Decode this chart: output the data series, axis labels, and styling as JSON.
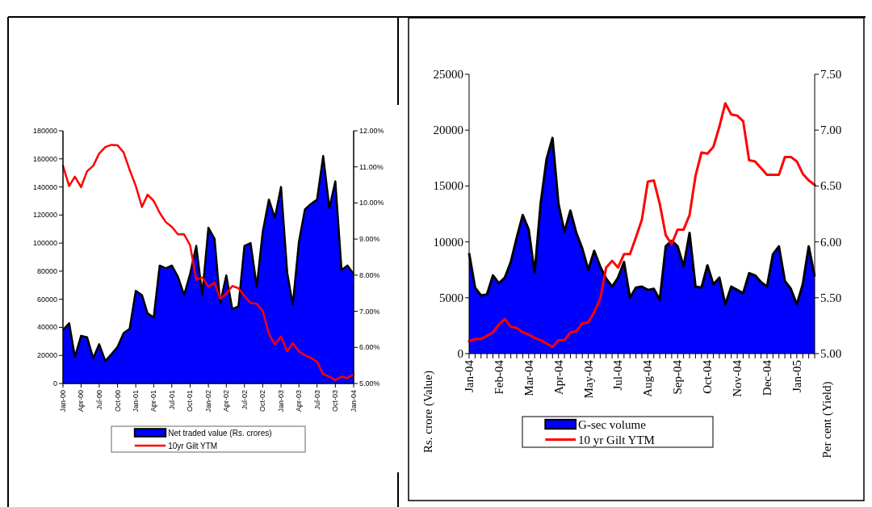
{
  "chart_data": [
    {
      "type": "area",
      "x": [
        "2000-01",
        "2000-02",
        "2000-03",
        "2000-04",
        "2000-05",
        "2000-06",
        "2000-07",
        "2000-08",
        "2000-09",
        "2000-10",
        "2000-11",
        "2000-12",
        "2001-01",
        "2001-02",
        "2001-03",
        "2001-04",
        "2001-05",
        "2001-06",
        "2001-07",
        "2001-08",
        "2001-09",
        "2001-10",
        "2001-11",
        "2001-12",
        "2002-01",
        "2002-02",
        "2002-03",
        "2002-04",
        "2002-05",
        "2002-06",
        "2002-07",
        "2002-08",
        "2002-09",
        "2002-10",
        "2002-11",
        "2002-12",
        "2003-01",
        "2003-02",
        "2003-03",
        "2003-04",
        "2003-05",
        "2003-06",
        "2003-07",
        "2003-08",
        "2003-09",
        "2003-10",
        "2003-11",
        "2003-12",
        "2004-01"
      ],
      "series": [
        {
          "name": "Net traded value (Rs. crores)",
          "type": "area",
          "color": "#0000ff",
          "values": [
            38000,
            43000,
            19000,
            34000,
            33000,
            18000,
            28000,
            16000,
            21000,
            26000,
            36000,
            39000,
            66000,
            63000,
            50000,
            47000,
            84000,
            82000,
            84000,
            76000,
            63000,
            78000,
            98000,
            63000,
            111000,
            103000,
            57000,
            77000,
            53000,
            55000,
            98000,
            100000,
            69000,
            108000,
            131000,
            118000,
            140000,
            79000,
            56000,
            101000,
            124000,
            128000,
            131000,
            162000,
            125000,
            144000,
            81000,
            84000,
            78000
          ]
        },
        {
          "name": "10yr Gilt YTM",
          "type": "line",
          "axis": "y2",
          "color": "#ff0000",
          "values": [
            11.03,
            10.47,
            10.73,
            10.44,
            10.88,
            11.03,
            11.37,
            11.55,
            11.61,
            11.6,
            11.4,
            10.92,
            10.47,
            9.89,
            10.23,
            10.06,
            9.73,
            9.47,
            9.34,
            9.13,
            9.13,
            8.83,
            7.87,
            7.94,
            7.68,
            7.79,
            7.35,
            7.49,
            7.7,
            7.64,
            7.42,
            7.23,
            7.21,
            7.01,
            6.38,
            6.08,
            6.3,
            5.89,
            6.12,
            5.89,
            5.78,
            5.71,
            5.6,
            5.26,
            5.19,
            5.1,
            5.19,
            5.15,
            5.26
          ]
        }
      ],
      "xlim": [
        "2000-01",
        "2004-01"
      ],
      "xticks": [
        {
          "value": "2000-01",
          "label": "Jan-00"
        },
        {
          "value": "2000-04",
          "label": "Apr-00"
        },
        {
          "value": "2000-07",
          "label": "Jul-00"
        },
        {
          "value": "2000-10",
          "label": "Oct-00"
        },
        {
          "value": "2001-01",
          "label": "Jan-01"
        },
        {
          "value": "2001-04",
          "label": "Apr-01"
        },
        {
          "value": "2001-07",
          "label": "Jul-01"
        },
        {
          "value": "2001-10",
          "label": "Oct-01"
        },
        {
          "value": "2002-01",
          "label": "Jan-02"
        },
        {
          "value": "2002-04",
          "label": "Apr-02"
        },
        {
          "value": "2002-07",
          "label": "Jul-02"
        },
        {
          "value": "2002-10",
          "label": "Oct-02"
        },
        {
          "value": "2003-01",
          "label": "Jan-03"
        },
        {
          "value": "2003-04",
          "label": "Apr-03"
        },
        {
          "value": "2003-07",
          "label": "Jul-03"
        },
        {
          "value": "2003-10",
          "label": "Oct-03"
        },
        {
          "value": "2004-01",
          "label": "Jan-04"
        }
      ],
      "ylim": [
        0,
        180000
      ],
      "yticks": [
        0,
        20000,
        40000,
        60000,
        80000,
        100000,
        120000,
        140000,
        160000,
        180000
      ],
      "y2lim": [
        5,
        12
      ],
      "y2ticks": [
        {
          "value": 5,
          "label": "5.00%"
        },
        {
          "value": 6,
          "label": "6.00%"
        },
        {
          "value": 7,
          "label": "7.00%"
        },
        {
          "value": 8,
          "label": "8.00%"
        },
        {
          "value": 9,
          "label": "9.00%"
        },
        {
          "value": 10,
          "label": "10.00%"
        },
        {
          "value": 11,
          "label": "11.00%"
        },
        {
          "value": 12,
          "label": "12.00%"
        }
      ],
      "legend": "bottom",
      "grid": false
    },
    {
      "type": "area",
      "ylabel": "Rs. crore (Value)",
      "y2label": "Per cent (Yield)",
      "categories": [
        "Jan-04",
        null,
        null,
        null,
        null,
        "Feb-04",
        null,
        null,
        null,
        null,
        "Mar-04",
        null,
        null,
        null,
        null,
        "Apr-04",
        null,
        null,
        null,
        null,
        "May-04",
        null,
        null,
        null,
        null,
        "Jul-04",
        null,
        null,
        null,
        null,
        "Aug-04",
        null,
        null,
        null,
        null,
        "Sep-04",
        null,
        null,
        null,
        null,
        "Oct-04",
        null,
        null,
        null,
        null,
        "Nov-04",
        null,
        null,
        null,
        null,
        "Dec-04",
        null,
        null,
        null,
        null,
        "Jan-05",
        null,
        null,
        null
      ],
      "series": [
        {
          "name": "G-sec volume",
          "type": "area",
          "color": "#0000ff",
          "values": [
            9000,
            5900,
            5200,
            5300,
            7000,
            6300,
            6800,
            8200,
            10400,
            12400,
            11100,
            7200,
            13400,
            17400,
            19300,
            13400,
            10900,
            12800,
            10800,
            9400,
            7500,
            9200,
            7800,
            6700,
            6000,
            6800,
            8200,
            5000,
            5900,
            6000,
            5700,
            5800,
            4800,
            9600,
            10100,
            9600,
            7800,
            10800,
            6000,
            5900,
            7900,
            6200,
            6800,
            4400,
            6000,
            5700,
            5400,
            7200,
            7000,
            6400,
            6000,
            8900,
            9600,
            6500,
            5800,
            4400,
            6200,
            9600,
            6900
          ]
        },
        {
          "name": "10 yr Gilt YTM",
          "type": "line",
          "axis": "y2",
          "color": "#ff0000",
          "values": [
            5.11,
            5.13,
            5.13,
            5.16,
            5.19,
            5.26,
            5.31,
            5.24,
            5.23,
            5.19,
            5.17,
            5.14,
            5.12,
            5.09,
            5.06,
            5.12,
            5.12,
            5.19,
            5.2,
            5.27,
            5.28,
            5.37,
            5.49,
            5.77,
            5.83,
            5.77,
            5.89,
            5.89,
            6.04,
            6.2,
            6.54,
            6.55,
            6.34,
            6.06,
            5.98,
            6.11,
            6.11,
            6.24,
            6.59,
            6.8,
            6.79,
            6.85,
            7.03,
            7.24,
            7.14,
            7.13,
            7.08,
            6.73,
            6.72,
            6.66,
            6.6,
            6.6,
            6.6,
            6.76,
            6.76,
            6.72,
            6.61,
            6.55,
            6.51
          ]
        }
      ],
      "ylim": [
        0,
        25000
      ],
      "yticks": [
        0,
        5000,
        10000,
        15000,
        20000,
        25000
      ],
      "y2lim": [
        5,
        7.5
      ],
      "y2ticks": [
        {
          "value": 5,
          "label": "5.00"
        },
        {
          "value": 5.5,
          "label": "5.50"
        },
        {
          "value": 6,
          "label": "6.00"
        },
        {
          "value": 6.5,
          "label": "6.50"
        },
        {
          "value": 7,
          "label": "7.00"
        },
        {
          "value": 7.5,
          "label": "7.50"
        }
      ],
      "legend": "bottom",
      "grid": false
    }
  ]
}
